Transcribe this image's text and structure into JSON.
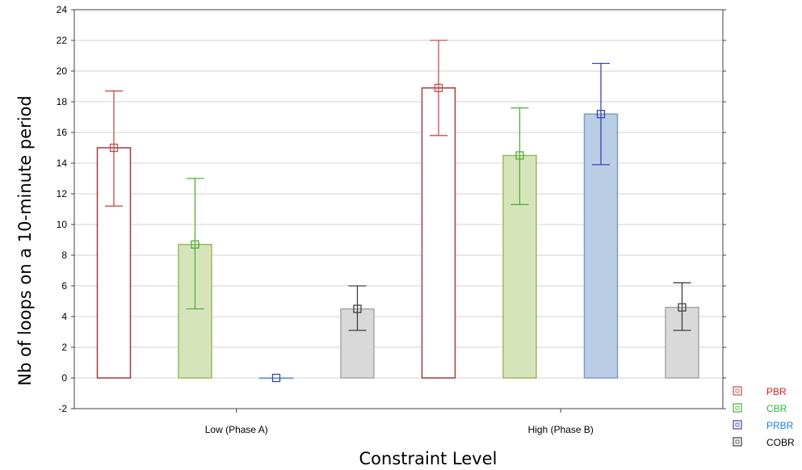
{
  "chart_data": {
    "type": "bar",
    "xlabel": "Constraint Level",
    "ylabel": "Nb of loops on a 10-minute period",
    "ylim": [
      -2,
      24
    ],
    "yticks": [
      -2,
      0,
      2,
      4,
      6,
      8,
      10,
      12,
      14,
      16,
      18,
      20,
      22,
      24
    ],
    "grid": true,
    "legend_position": "bottom-right",
    "categories": [
      "Low (Phase A)",
      "High (Phase B)"
    ],
    "series": [
      {
        "name": "PBR",
        "values": [
          15.0,
          18.9
        ],
        "err_low": [
          11.2,
          15.8
        ],
        "err_high": [
          18.7,
          22.0
        ],
        "fill": "#ffffff",
        "stroke": "#a23b3b",
        "marker": "#c0504d",
        "label_color": "#e01b1b"
      },
      {
        "name": "CBR",
        "values": [
          8.7,
          14.5
        ],
        "err_low": [
          4.5,
          11.3
        ],
        "err_high": [
          13.0,
          17.6
        ],
        "fill": "#d6e4bc",
        "stroke": "#9bbb59",
        "marker": "#4fae3a",
        "label_color": "#2eb82e"
      },
      {
        "name": "PRBR",
        "values": [
          0.0,
          17.2
        ],
        "err_low": [
          0.0,
          13.9
        ],
        "err_high": [
          0.0,
          20.5
        ],
        "fill": "#b9cde5",
        "stroke": "#7f9cc4",
        "marker": "#3a44b0",
        "label_color": "#1b7fd6"
      },
      {
        "name": "COBR",
        "values": [
          4.5,
          4.6
        ],
        "err_low": [
          3.1,
          3.1
        ],
        "err_high": [
          6.0,
          6.2
        ],
        "fill": "#d9d9d9",
        "stroke": "#a6a6a6",
        "marker": "#404040",
        "label_color": "#000000"
      }
    ]
  }
}
